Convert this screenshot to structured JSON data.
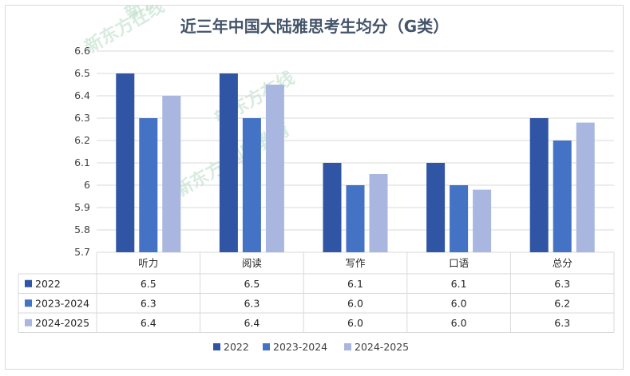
{
  "chart_data": {
    "type": "bar",
    "title": "近三年中国大陆雅思考生均分（G类）",
    "categories": [
      "听力",
      "阅读",
      "写作",
      "口语",
      "总分"
    ],
    "series": [
      {
        "name": "2022",
        "values": [
          6.5,
          6.5,
          6.1,
          6.1,
          6.3
        ],
        "color": "#2f55a4"
      },
      {
        "name": "2023-2024",
        "values": [
          6.3,
          6.3,
          6.0,
          6.0,
          6.2
        ],
        "color": "#4472c4"
      },
      {
        "name": "2024-2025",
        "values": [
          6.4,
          6.45,
          6.05,
          5.98,
          6.28
        ],
        "color": "#a9b7e0"
      }
    ],
    "table_rows": [
      {
        "label": "2022",
        "cells": [
          "6.5",
          "6.5",
          "6.1",
          "6.1",
          "6.3"
        ]
      },
      {
        "label": "2023-2024",
        "cells": [
          "6.3",
          "6.3",
          "6.0",
          "6.0",
          "6.2"
        ]
      },
      {
        "label": "2024-2025",
        "cells": [
          "6.4",
          "6.4",
          "6.0",
          "6.0",
          "6.3"
        ]
      }
    ],
    "ylim": [
      5.7,
      6.6
    ],
    "yticks": [
      5.7,
      5.8,
      5.9,
      6.0,
      6.1,
      6.2,
      6.3,
      6.4,
      6.5,
      6.6
    ],
    "ytick_labels": [
      "5.7",
      "5.8",
      "5.9",
      "6",
      "6.1",
      "6.2",
      "6.3",
      "6.4",
      "6.5",
      "6.6"
    ],
    "grid": true,
    "legend_position": "bottom",
    "gridline_color": "#d9d9d9"
  },
  "watermark": {
    "brand": "新东方在线",
    "division": "新东方 国际教育",
    "color": "#9fd3b1"
  }
}
